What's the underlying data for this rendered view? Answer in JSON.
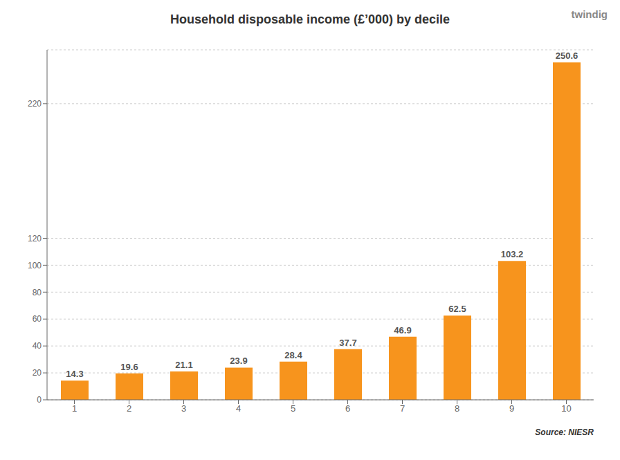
{
  "chart_data": {
    "type": "bar",
    "title": "Household disposable income (£’000) by decile",
    "categories": [
      1,
      2,
      3,
      4,
      5,
      6,
      7,
      8,
      9,
      10
    ],
    "values": [
      14.3,
      19.6,
      21.1,
      23.9,
      28.4,
      37.7,
      46.9,
      62.5,
      103.2,
      250.6
    ],
    "color": "#F7941D",
    "ylim": [
      0,
      260
    ],
    "yticks": [
      0,
      20,
      40,
      60,
      80,
      100,
      120,
      220
    ],
    "grid": true,
    "data_labels": true,
    "annotations": [
      "Source: NIESR",
      "twindig"
    ]
  }
}
